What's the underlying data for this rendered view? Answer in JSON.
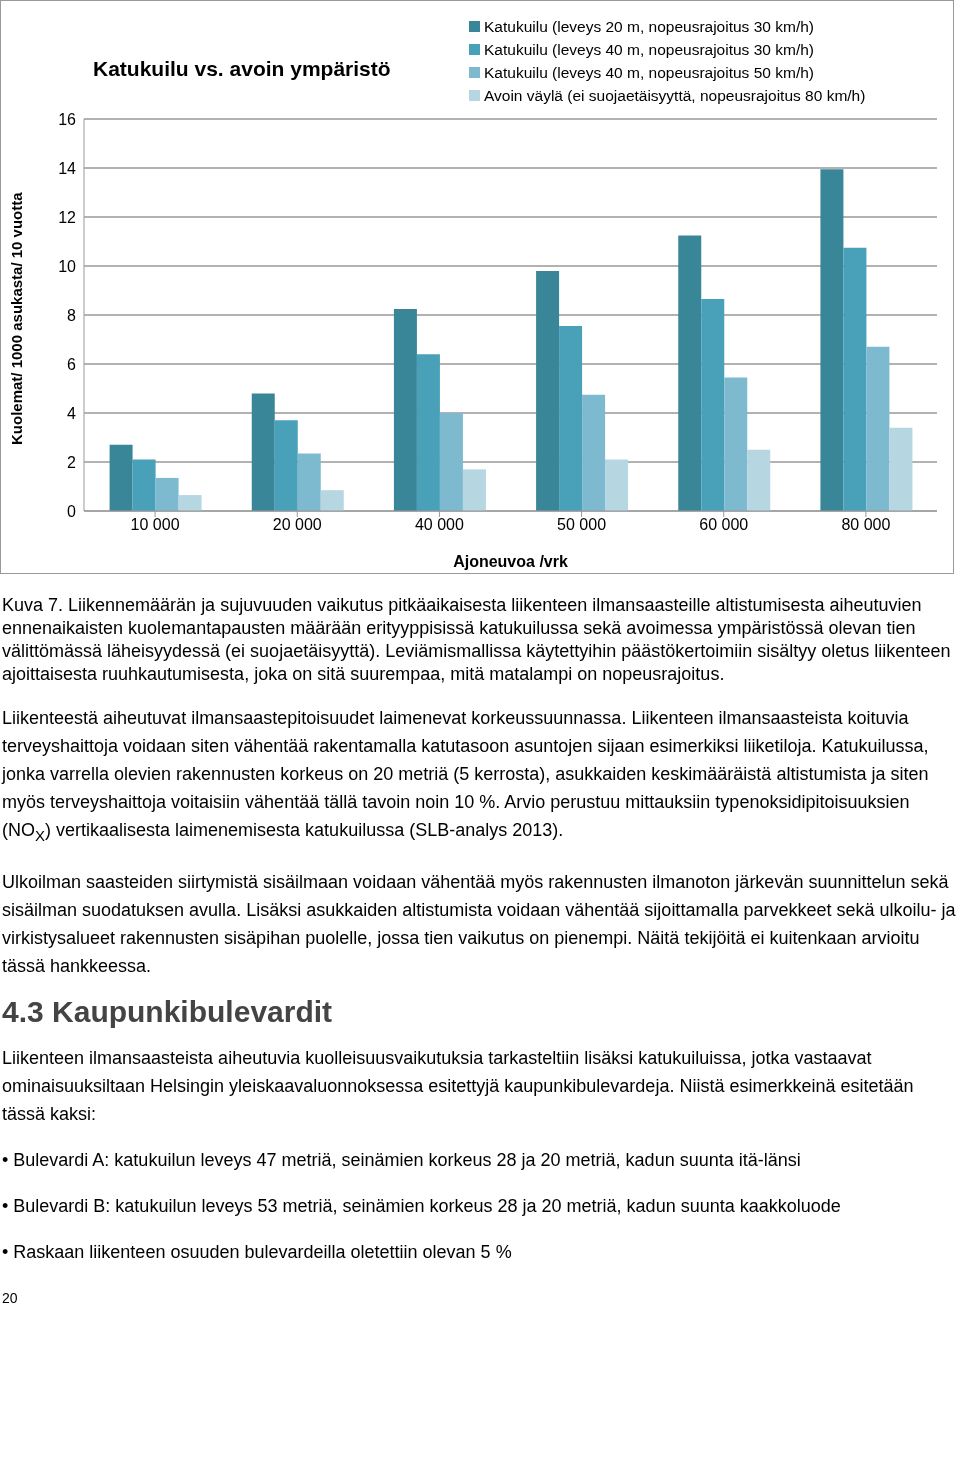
{
  "chart_data": {
    "type": "bar",
    "title": "Katukuilu vs. avoin ympäristö",
    "xlabel": "Ajoneuvoa /vrk",
    "ylabel": "Kuolemat/ 1000 asukasta/ 10 vuotta",
    "categories": [
      "10 000",
      "20 000",
      "40 000",
      "50 000",
      "60 000",
      "80 000"
    ],
    "series": [
      {
        "name": "Katukuilu (leveys 20 m, nopeusrajoitus 30 km/h)",
        "color": "#3a8699",
        "values": [
          2.7,
          4.8,
          8.25,
          9.8,
          11.25,
          13.95
        ]
      },
      {
        "name": "Katukuilu (leveys 40 m, nopeusrajoitus 30 km/h)",
        "color": "#48a1b9",
        "values": [
          2.1,
          3.7,
          6.4,
          7.55,
          8.65,
          10.75
        ]
      },
      {
        "name": "Katukuilu (leveys 40 m, nopeusrajoitus 50 km/h)",
        "color": "#7dbacf",
        "values": [
          1.35,
          2.35,
          4.0,
          4.75,
          5.45,
          6.7
        ]
      },
      {
        "name": "Avoin väylä (ei suojaetäisyyttä, nopeusrajoitus 80 km/h)",
        "color": "#b6d6e2",
        "values": [
          0.65,
          0.85,
          1.7,
          2.1,
          2.5,
          3.4
        ]
      }
    ],
    "ylim": [
      0,
      16
    ],
    "yticks": [
      0,
      2,
      4,
      6,
      8,
      10,
      12,
      14,
      16
    ],
    "grid": "y",
    "legend": "top right",
    "annotations": [
      "Kuva 7. Liikennemäärän ja sujuvuuden vaikutus pitkäaikaisesta liikenteen ilmansaasteille altistumisesta aiheutuvien ennenaikaisten kuolemantapausten määrään erityyppisissä katukuilussa sekä avoimessa ympäristössä olevan tien välittömässä läheisyydessä (ei suojaetäisyyttä). Leviämismallissa käytettyihin päästökertoimiin sisältyy oletus liikenteen ajoittaisesta ruuhkautumisesta, joka on sitä suurempaa, mitä matalampi on nopeusrajoitus.",
      "Liikenteestä aiheutuvat ilmansaastepitoisuudet laimenevat korkeussuunnassa. Liikenteen ilmansaasteista koituvia terveyshaittoja voidaan siten vähentää rakentamalla katutasoon asuntojen sijaan esimerkiksi liiketiloja. Katukuilussa, jonka varrella olevien rakennusten korkeus on 20 metriä (5 kerrosta), asukkaiden keskimääräistä altistumista ja siten myös terveyshaittoja voitaisiin vähentää tällä tavoin noin 10 %. Arvio perustuu mittauksiin typenoksidipitoisuuksien (NO$_{X}$) vertikaalisesta laimenemisesta katukuilussa (SLB-analys 2013).",
      "Ulkoilman saasteiden siirtymistä sisäilmaan voidaan vähentää myös rakennusten ilmanoton järkevän suunnittelun sekä sisäilman suodatuksen avulla. Lisäksi asukkaiden altistumista voidaan vähentää sijoittamalla parvekkeet sekä ulkoilu- ja virkistysalueet rakennusten sisäpihan puolelle, jossa tien vaikutus on pienempi. Näitä tekijöitä ei kuitenkaan arvioitu tässä hankkeessa.",
      "4.3 Kaupunkibulevardit",
      "Liikenteen ilmansaasteista aiheutuvia kuolleisuusvaikutuksia tarkasteltiin lisäksi katukuiluissa, jotka vastaavat ominaisuuksiltaan Helsingin yleiskaavaluonnoksessa esitettyjä kaupunkibulevardeja. Niistä esimerkkeinä esitetään tässä kaksi:",
      "• Bulevardi A: katukuilun leveys 47 metriä, seinämien korkeus 28 ja 20 metriä, kadun suunta itä-länsi",
      "• Bulevardi B: katukuilun leveys 53 metriä, seinämien korkeus 28 ja 20 metriä, kadun suunta kaakkoluode",
      "• Raskaan liikenteen osuuden bulevardeilla oletettiin olevan 5 %",
      "20"
    ]
  }
}
